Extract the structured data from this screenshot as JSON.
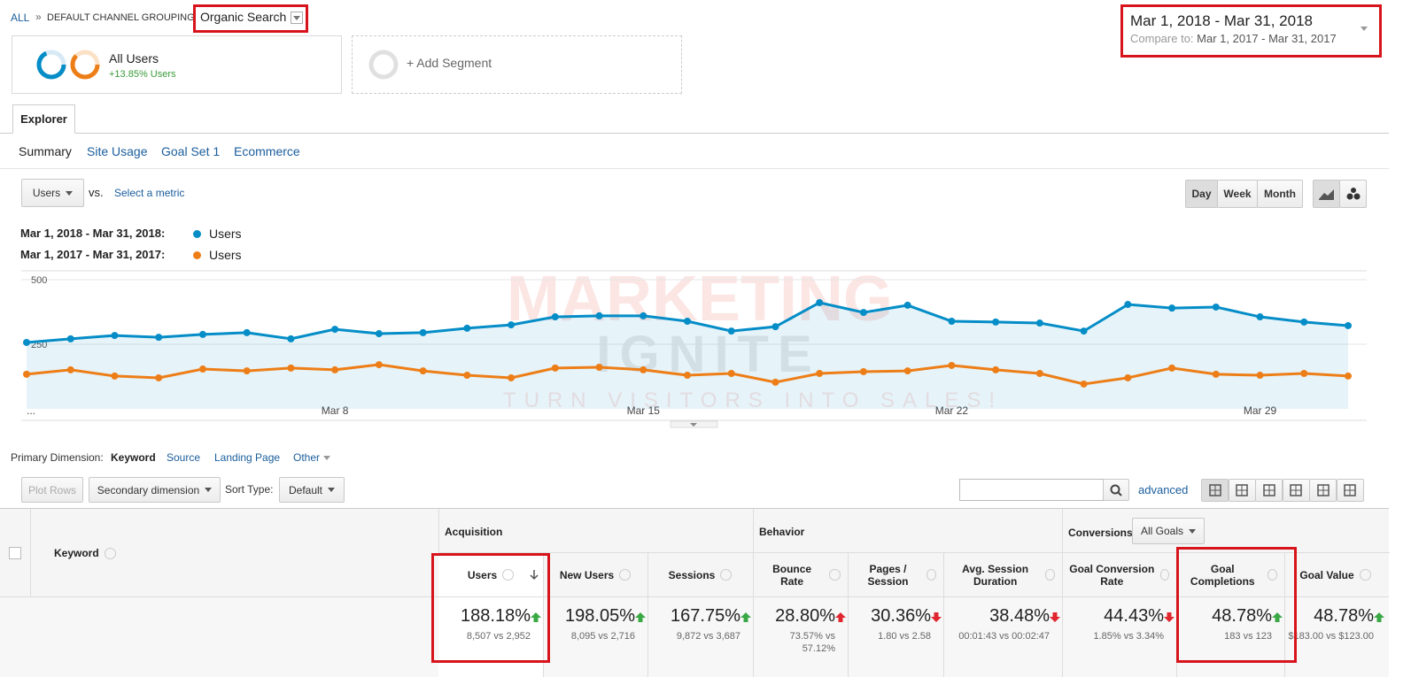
{
  "breadcrumb": {
    "root": "ALL",
    "separator": "»",
    "grouping": "DEFAULT CHANNEL GROUPING",
    "channel": "Organic Search"
  },
  "segments": [
    {
      "name": "All Users",
      "detail": "+13.85% Users"
    },
    {
      "name": "+ Add Segment"
    }
  ],
  "date_range": {
    "current": "Mar 1, 2018 - Mar 31, 2018",
    "compare_label": "Compare to:",
    "compare": "Mar 1, 2017 - Mar 31, 2017"
  },
  "tab": "Explorer",
  "subtabs": [
    "Summary",
    "Site Usage",
    "Goal Set 1",
    "Ecommerce"
  ],
  "metric_selector": {
    "metric": "Users",
    "vs": "vs.",
    "second": "Select a metric"
  },
  "granularity": [
    "Day",
    "Week",
    "Month"
  ],
  "chart_data": {
    "type": "line",
    "categories": [
      "...",
      null,
      null,
      null,
      null,
      null,
      null,
      "Mar 8",
      null,
      null,
      null,
      null,
      null,
      null,
      "Mar 15",
      null,
      null,
      null,
      null,
      null,
      null,
      "Mar 22",
      null,
      null,
      null,
      null,
      null,
      null,
      "Mar 29",
      null,
      null
    ],
    "series": [
      {
        "name": "Users",
        "period": "Mar 1, 2018 - Mar 31, 2018:",
        "color": "#058dc7",
        "values": [
          257,
          271,
          284,
          277,
          288,
          295,
          271,
          308,
          291,
          295,
          312,
          325,
          356,
          360,
          360,
          339,
          301,
          318,
          411,
          373,
          401,
          339,
          336,
          332,
          301,
          404,
          390,
          394,
          356,
          336,
          322
        ]
      },
      {
        "name": "Users",
        "period": "Mar 1, 2017 - Mar 31, 2017:",
        "color": "#ed7e17",
        "values": [
          134,
          151,
          127,
          120,
          154,
          147,
          158,
          151,
          171,
          147,
          130,
          120,
          158,
          161,
          151,
          130,
          137,
          103,
          137,
          144,
          147,
          168,
          151,
          137,
          96,
          120,
          158,
          134,
          130,
          137,
          127
        ]
      }
    ],
    "ylim": [
      0,
      500
    ],
    "yticks": [
      250,
      500
    ],
    "grid": true
  },
  "watermark": {
    "title": "MARKETING",
    "subtitle": "IGNITE",
    "tagline": "TURN VISITORS INTO SALES!"
  },
  "dimensions": {
    "label": "Primary Dimension:",
    "active": "Keyword",
    "options": [
      "Source",
      "Landing Page",
      "Other"
    ]
  },
  "toolbar": {
    "plot_rows": "Plot Rows",
    "secondary": "Secondary dimension",
    "sort_label": "Sort Type:",
    "sort": "Default",
    "advanced": "advanced"
  },
  "table": {
    "dimension": "Keyword",
    "groups": [
      "Acquisition",
      "Behavior",
      "Conversions"
    ],
    "goal_filter": "All Goals",
    "columns": [
      "Users",
      "New Users",
      "Sessions",
      "Bounce Rate",
      "Pages / Session",
      "Avg. Session Duration",
      "Goal Conversion Rate",
      "Goal Completions",
      "Goal Value"
    ],
    "totals": [
      {
        "change": "188.18%",
        "detail": "8,507 vs 2,952",
        "trend": "up",
        "good": true
      },
      {
        "change": "198.05%",
        "detail": "8,095 vs 2,716",
        "trend": "up",
        "good": true
      },
      {
        "change": "167.75%",
        "detail": "9,872 vs 3,687",
        "trend": "up",
        "good": true
      },
      {
        "change": "28.80%",
        "detail": "73.57% vs 57.12%",
        "trend": "up",
        "good": false
      },
      {
        "change": "30.36%",
        "detail": "1.80 vs 2.58",
        "trend": "down",
        "good": false
      },
      {
        "change": "38.48%",
        "detail": "00:01:43 vs 00:02:47",
        "trend": "down",
        "good": false
      },
      {
        "change": "44.43%",
        "detail": "1.85% vs 3.34%",
        "trend": "down",
        "good": false
      },
      {
        "change": "48.78%",
        "detail": "183 vs 123",
        "trend": "up",
        "good": true
      },
      {
        "change": "48.78%",
        "detail": "$183.00 vs $123.00",
        "trend": "up",
        "good": true
      }
    ]
  }
}
